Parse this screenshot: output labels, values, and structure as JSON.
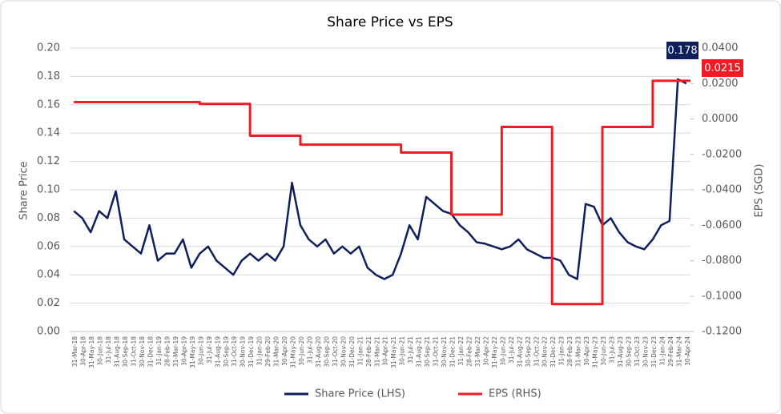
{
  "chart_data": {
    "type": "line",
    "title": "Share Price vs EPS",
    "ylabel": "Share Price",
    "y2label": "EPS (SGD)",
    "categories": [
      "31-Mar-18",
      "30-Apr-18",
      "31-May-18",
      "30-Jun-18",
      "31-Jul-18",
      "31-Aug-18",
      "30-Sep-18",
      "31-Oct-18",
      "30-Nov-18",
      "31-Dec-18",
      "31-Jan-19",
      "28-Feb-19",
      "31-Mar-19",
      "30-Apr-19",
      "31-May-19",
      "30-Jun-19",
      "31-Jul-19",
      "31-Aug-19",
      "30-Sep-19",
      "31-Oct-19",
      "30-Nov-19",
      "31-Dec-19",
      "31-Jan-20",
      "29-Feb-20",
      "31-Mar-20",
      "30-Apr-20",
      "31-May-20",
      "30-Jun-20",
      "31-Jul-20",
      "31-Aug-20",
      "30-Sep-20",
      "31-Oct-20",
      "30-Nov-20",
      "31-Dec-20",
      "31-Jan-21",
      "28-Feb-21",
      "31-Mar-21",
      "30-Apr-21",
      "31-May-21",
      "30-Jun-21",
      "31-Jul-21",
      "31-Aug-21",
      "30-Sep-21",
      "31-Oct-21",
      "30-Nov-21",
      "31-Dec-21",
      "31-Jan-22",
      "28-Feb-22",
      "31-Mar-22",
      "30-Apr-22",
      "31-May-22",
      "30-Jun-22",
      "31-Jul-22",
      "31-Aug-22",
      "30-Sep-22",
      "31-Oct-22",
      "30-Nov-22",
      "31-Dec-22",
      "31-Jan-23",
      "28-Feb-23",
      "31-Mar-23",
      "30-Apr-23",
      "31-May-23",
      "30-Jun-23",
      "31-Jul-23",
      "31-Aug-23",
      "30-Sep-23",
      "31-Oct-23",
      "30-Nov-23",
      "31-Dec-23",
      "31-Jan-24",
      "29-Feb-24",
      "31-Mar-24",
      "30-Apr-24"
    ],
    "series": [
      {
        "name": "Share Price (LHS)",
        "color": "#0f1f5c",
        "axis": "y",
        "values": [
          0.085,
          0.08,
          0.07,
          0.085,
          0.08,
          0.099,
          0.065,
          0.06,
          0.055,
          0.075,
          0.05,
          0.055,
          0.055,
          0.065,
          0.045,
          0.055,
          0.06,
          0.05,
          0.045,
          0.04,
          0.05,
          0.055,
          0.05,
          0.055,
          0.05,
          0.06,
          0.105,
          0.075,
          0.065,
          0.06,
          0.065,
          0.055,
          0.06,
          0.055,
          0.06,
          0.045,
          0.04,
          0.037,
          0.04,
          0.055,
          0.075,
          0.065,
          0.095,
          0.09,
          0.085,
          0.083,
          0.075,
          0.07,
          0.063,
          0.062,
          0.06,
          0.058,
          0.06,
          0.065,
          0.058,
          0.055,
          0.052,
          0.052,
          0.05,
          0.04,
          0.037,
          0.09,
          0.088,
          0.075,
          0.08,
          0.07,
          0.063,
          0.06,
          0.058,
          0.065,
          0.075,
          0.078,
          0.178,
          0.175
        ]
      },
      {
        "name": "EPS (RHS)",
        "color": "#ee1c25",
        "axis": "y2",
        "step": true,
        "values": [
          0.0095,
          0.0095,
          0.0095,
          0.0095,
          0.0095,
          0.0095,
          0.0095,
          0.0095,
          0.0095,
          0.0095,
          0.0095,
          0.0095,
          0.0095,
          0.0095,
          0.0095,
          0.0085,
          0.0085,
          0.0085,
          0.0085,
          0.0085,
          0.0085,
          -0.0095,
          -0.0095,
          -0.0095,
          -0.0095,
          -0.0095,
          -0.0095,
          -0.0145,
          -0.0145,
          -0.0145,
          -0.0145,
          -0.0145,
          -0.0145,
          -0.0145,
          -0.0145,
          -0.0145,
          -0.0145,
          -0.0145,
          -0.0145,
          -0.019,
          -0.019,
          -0.019,
          -0.019,
          -0.019,
          -0.019,
          -0.054,
          -0.054,
          -0.054,
          -0.054,
          -0.054,
          -0.054,
          -0.0045,
          -0.0045,
          -0.0045,
          -0.0045,
          -0.0045,
          -0.0045,
          -0.1045,
          -0.1045,
          -0.1045,
          -0.1045,
          -0.1045,
          -0.1045,
          -0.0045,
          -0.0045,
          -0.0045,
          -0.0045,
          -0.0045,
          -0.0045,
          0.0215,
          0.0215,
          0.0215,
          0.0215,
          0.0215
        ]
      }
    ],
    "annotations": [
      {
        "text": "0.178",
        "color": "#0f1f5c"
      },
      {
        "text": "0.0215",
        "color": "#ee1c25"
      }
    ],
    "ylim": [
      0,
      0.2
    ],
    "yticks": [
      {
        "value": 0,
        "label": "0.00"
      },
      0.02,
      0.04,
      0.06,
      0.08,
      {
        "value": 0.1,
        "label": "0.10"
      },
      0.12,
      0.14,
      0.16,
      0.18,
      {
        "value": 0.2,
        "label": "0.20"
      }
    ],
    "y2lim": [
      -0.12,
      0.04
    ],
    "y2ticks": [
      {
        "value": -0.12,
        "label": "-0.1200"
      },
      {
        "value": -0.1,
        "label": "-0.1000"
      },
      {
        "value": -0.08,
        "label": "-0.0800"
      },
      {
        "value": -0.06,
        "label": "-0.0600"
      },
      {
        "value": -0.04,
        "label": "-0.0400"
      },
      {
        "value": -0.02,
        "label": "-0.0200"
      },
      {
        "value": 0,
        "label": "0.0000"
      },
      {
        "value": 0.02,
        "label": "0.0200"
      },
      {
        "value": 0.04,
        "label": "0.0400"
      }
    ],
    "grid": true,
    "legend": "bottom"
  }
}
